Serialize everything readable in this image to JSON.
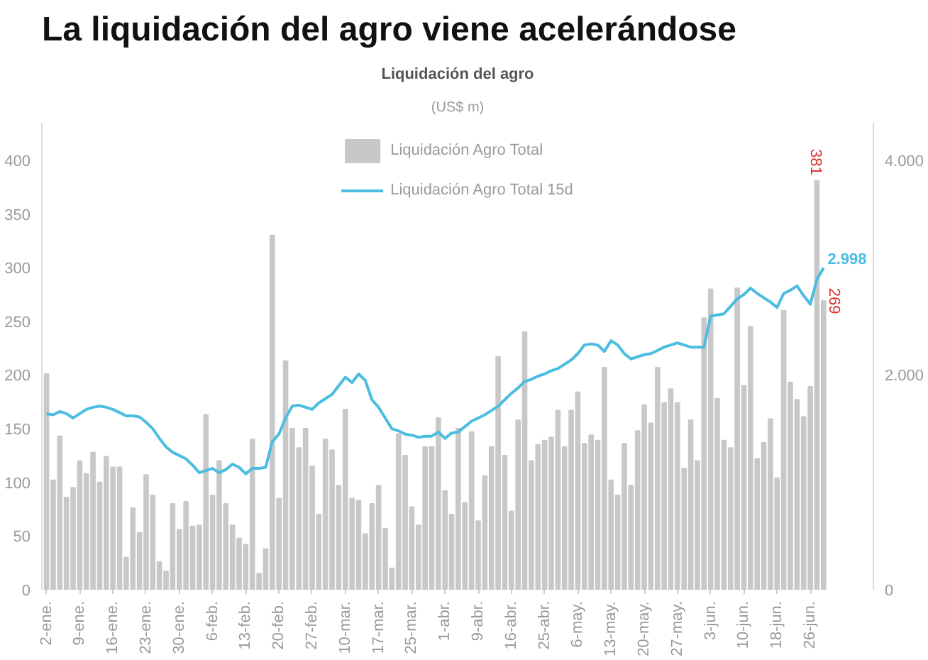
{
  "chart_data": {
    "type": "bar",
    "title": "La liquidación del agro viene acelerándose",
    "subtitle": "Liquidación del agro",
    "annotations": [
      "(US$ m)"
    ],
    "categories": [
      "2-ene.",
      null,
      null,
      null,
      null,
      "9-ene.",
      null,
      null,
      null,
      null,
      "16-ene.",
      null,
      null,
      null,
      null,
      "23-ene.",
      null,
      null,
      null,
      null,
      "30-ene.",
      null,
      null,
      null,
      null,
      "6-feb.",
      null,
      null,
      null,
      null,
      "13-feb.",
      null,
      null,
      null,
      null,
      "20-feb.",
      null,
      null,
      null,
      null,
      "27-feb.",
      null,
      null,
      null,
      null,
      "10-mar.",
      null,
      null,
      null,
      null,
      "17-mar.",
      null,
      null,
      null,
      null,
      "25-mar.",
      null,
      null,
      null,
      null,
      "1-abr.",
      null,
      null,
      null,
      null,
      "9-abr.",
      null,
      null,
      null,
      null,
      "16-abr.",
      null,
      null,
      null,
      null,
      "25-abr.",
      null,
      null,
      null,
      null,
      "6-may.",
      null,
      null,
      null,
      null,
      "13-may.",
      null,
      null,
      null,
      null,
      "20-may.",
      null,
      null,
      null,
      null,
      "27-may.",
      null,
      null,
      null,
      null,
      "3-jun.",
      null,
      null,
      null,
      null,
      "10-jun.",
      null,
      null,
      null,
      null,
      "18-jun.",
      null,
      null,
      null,
      null,
      "26-jun.",
      null,
      null
    ],
    "series": [
      {
        "name": "Liquidación Agro Total",
        "color": "#c8c8c8",
        "values": [
          201,
          102,
          143,
          86,
          95,
          120,
          108,
          128,
          100,
          124,
          114,
          114,
          30,
          76,
          53,
          107,
          88,
          26,
          17,
          80,
          56,
          82,
          59,
          60,
          163,
          88,
          120,
          80,
          60,
          48,
          42,
          140,
          15,
          38,
          330,
          85,
          213,
          150,
          132,
          150,
          115,
          70,
          140,
          130,
          97,
          168,
          85,
          83,
          52,
          80,
          97,
          57,
          20,
          145,
          125,
          77,
          60,
          133,
          133,
          160,
          92,
          70,
          150,
          81,
          147,
          64,
          106,
          133,
          217,
          125,
          73,
          158,
          240,
          120,
          135,
          139,
          142,
          167,
          133,
          167,
          184,
          136,
          144,
          139,
          207,
          102,
          88,
          136,
          97,
          148,
          172,
          155,
          207,
          174,
          187,
          174,
          113,
          158,
          120,
          253,
          280,
          178,
          139,
          132,
          281,
          190,
          245,
          122,
          137,
          159,
          104,
          260,
          193,
          177,
          161,
          189,
          381,
          269
        ],
        "value_labels": [
          null,
          null,
          null,
          null,
          null,
          null,
          null,
          null,
          null,
          null,
          null,
          null,
          null,
          null,
          null,
          null,
          null,
          null,
          null,
          null,
          null,
          null,
          null,
          null,
          null,
          null,
          null,
          null,
          null,
          null,
          null,
          null,
          null,
          null,
          null,
          null,
          null,
          null,
          null,
          null,
          null,
          null,
          null,
          null,
          null,
          null,
          null,
          null,
          null,
          null,
          null,
          null,
          null,
          null,
          null,
          null,
          null,
          null,
          null,
          null,
          null,
          null,
          null,
          null,
          null,
          null,
          null,
          null,
          null,
          null,
          null,
          null,
          null,
          null,
          null,
          null,
          null,
          null,
          null,
          null,
          null,
          null,
          null,
          null,
          null,
          null,
          null,
          null,
          null,
          null,
          null,
          null,
          null,
          null,
          null,
          null,
          null,
          null,
          null,
          null,
          null,
          null,
          null,
          null,
          null,
          null,
          null,
          null,
          null,
          null,
          null,
          null,
          null,
          null,
          null,
          null,
          "381",
          "269"
        ]
      },
      {
        "name": "Liquidación Agro Total 15d",
        "type": "line",
        "axis": "y2",
        "color": "#4bbde0",
        "values": [
          1640,
          1630,
          1660,
          1640,
          1600,
          1640,
          1680,
          1700,
          1710,
          1700,
          1680,
          1650,
          1620,
          1620,
          1610,
          1560,
          1500,
          1410,
          1330,
          1280,
          1250,
          1220,
          1160,
          1090,
          1110,
          1130,
          1090,
          1120,
          1170,
          1140,
          1080,
          1130,
          1130,
          1140,
          1380,
          1450,
          1600,
          1710,
          1720,
          1700,
          1680,
          1740,
          1780,
          1820,
          1900,
          1980,
          1930,
          2010,
          1950,
          1770,
          1700,
          1600,
          1500,
          1480,
          1450,
          1440,
          1420,
          1430,
          1430,
          1470,
          1410,
          1460,
          1470,
          1520,
          1570,
          1600,
          1630,
          1670,
          1710,
          1770,
          1830,
          1880,
          1940,
          1960,
          1990,
          2010,
          2040,
          2060,
          2100,
          2140,
          2200,
          2280,
          2290,
          2280,
          2220,
          2320,
          2280,
          2200,
          2150,
          2170,
          2190,
          2200,
          2230,
          2260,
          2280,
          2300,
          2280,
          2260,
          2260,
          2260,
          2550,
          2560,
          2570,
          2640,
          2710,
          2750,
          2810,
          2760,
          2720,
          2680,
          2630,
          2760,
          2790,
          2830,
          2740,
          2660,
          2890,
          2998
        ],
        "value_labels": [
          null,
          null,
          null,
          null,
          null,
          null,
          null,
          null,
          null,
          null,
          null,
          null,
          null,
          null,
          null,
          null,
          null,
          null,
          null,
          null,
          null,
          null,
          null,
          null,
          null,
          null,
          null,
          null,
          null,
          null,
          null,
          null,
          null,
          null,
          null,
          null,
          null,
          null,
          null,
          null,
          null,
          null,
          null,
          null,
          null,
          null,
          null,
          null,
          null,
          null,
          null,
          null,
          null,
          null,
          null,
          null,
          null,
          null,
          null,
          null,
          null,
          null,
          null,
          null,
          null,
          null,
          null,
          null,
          null,
          null,
          null,
          null,
          null,
          null,
          null,
          null,
          null,
          null,
          null,
          null,
          null,
          null,
          null,
          null,
          null,
          null,
          null,
          null,
          null,
          null,
          null,
          null,
          null,
          null,
          null,
          null,
          null,
          null,
          null,
          null,
          null,
          null,
          null,
          null,
          null,
          null,
          null,
          null,
          null,
          null,
          null,
          null,
          null,
          null,
          null,
          null,
          null,
          "2.998"
        ]
      }
    ],
    "ylim": [
      0,
      435
    ],
    "yticks": [
      0,
      50,
      100,
      150,
      200,
      250,
      300,
      350,
      400
    ],
    "y2lim": [
      0,
      4350
    ],
    "y2ticks": [
      0,
      {
        "value": 2000,
        "label": "2.000"
      },
      {
        "value": 4000,
        "label": "4.000"
      }
    ],
    "grid": false,
    "legend": "top"
  }
}
